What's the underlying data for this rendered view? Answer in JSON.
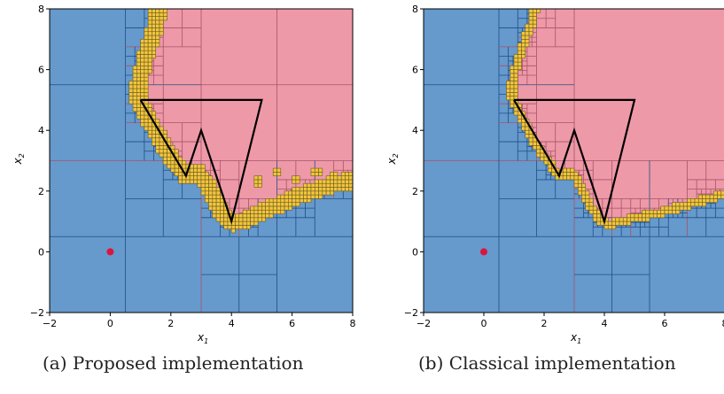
{
  "colors": {
    "safe": "#6699CC",
    "unsafe": "#EE99A8",
    "boundary": "#F2C53D",
    "safe_edge": "#1F4E86",
    "unsafe_edge": "#A65468",
    "boundary_edge": "#6B5C22",
    "origin": "#DC143C",
    "polygon": "#000000"
  },
  "captions": [
    "(a) Proposed implementation",
    "(b) Classical implementation"
  ],
  "chart_data": [
    {
      "type": "heatmap",
      "title": "",
      "xlabel": "x",
      "xlabel_sub": "1",
      "ylabel": "x",
      "ylabel_sub": "2",
      "xlim": [
        -2,
        8
      ],
      "ylim": [
        -2,
        8
      ],
      "xticks": [
        "−2",
        "0",
        "2",
        "4",
        "6",
        "8"
      ],
      "yticks": [
        "−2",
        "0",
        "2",
        "4",
        "6",
        "8"
      ],
      "origin_point": [
        0,
        0
      ],
      "polygon": [
        [
          1,
          5
        ],
        [
          5,
          5
        ],
        [
          4,
          1
        ],
        [
          3,
          4
        ],
        [
          2.5,
          2.5
        ],
        [
          1,
          5
        ]
      ],
      "boundary_curve": [
        [
          1.6,
          8
        ],
        [
          1.5,
          7.4
        ],
        [
          1.3,
          6.8
        ],
        [
          1.1,
          6.2
        ],
        [
          0.95,
          5.6
        ],
        [
          0.95,
          5.0
        ],
        [
          1.3,
          4.3
        ],
        [
          1.7,
          3.6
        ],
        [
          2.1,
          3.0
        ],
        [
          2.5,
          2.5
        ],
        [
          2.9,
          2.6
        ],
        [
          3.2,
          2.2
        ],
        [
          3.5,
          1.6
        ],
        [
          3.8,
          1.1
        ],
        [
          4.1,
          0.95
        ],
        [
          4.6,
          1.1
        ],
        [
          5.2,
          1.4
        ],
        [
          5.9,
          1.7
        ],
        [
          6.6,
          2.0
        ],
        [
          7.3,
          2.2
        ],
        [
          8,
          2.35
        ]
      ],
      "band_width": 0.55,
      "bumps": [
        [
          5.5,
          2.6
        ],
        [
          6.1,
          2.4
        ],
        [
          6.8,
          2.6
        ],
        [
          7.4,
          2.5
        ],
        [
          4.9,
          2.3
        ]
      ]
    },
    {
      "type": "heatmap",
      "title": "",
      "xlabel": "x",
      "xlabel_sub": "1",
      "ylabel": "x",
      "ylabel_sub": "2",
      "xlim": [
        -2,
        8
      ],
      "ylim": [
        -2,
        8
      ],
      "xticks": [
        "−2",
        "0",
        "2",
        "4",
        "6",
        "8"
      ],
      "yticks": [
        "−2",
        "0",
        "2",
        "4",
        "6",
        "8"
      ],
      "origin_point": [
        0,
        0
      ],
      "polygon": [
        [
          1,
          5
        ],
        [
          5,
          5
        ],
        [
          4,
          1
        ],
        [
          3,
          4
        ],
        [
          2.5,
          2.5
        ],
        [
          1,
          5
        ]
      ],
      "boundary_curve": [
        [
          1.7,
          8
        ],
        [
          1.55,
          7.4
        ],
        [
          1.3,
          6.8
        ],
        [
          1.1,
          6.2
        ],
        [
          0.95,
          5.6
        ],
        [
          0.95,
          5.0
        ],
        [
          1.3,
          4.3
        ],
        [
          1.7,
          3.6
        ],
        [
          2.1,
          3.0
        ],
        [
          2.5,
          2.5
        ],
        [
          2.9,
          2.6
        ],
        [
          3.2,
          2.2
        ],
        [
          3.5,
          1.6
        ],
        [
          3.8,
          1.1
        ],
        [
          4.1,
          0.9
        ],
        [
          4.6,
          1.0
        ],
        [
          5.2,
          1.15
        ],
        [
          5.9,
          1.3
        ],
        [
          6.6,
          1.5
        ],
        [
          7.3,
          1.7
        ],
        [
          8,
          1.9
        ]
      ],
      "band_width": 0.28,
      "bumps": []
    }
  ]
}
